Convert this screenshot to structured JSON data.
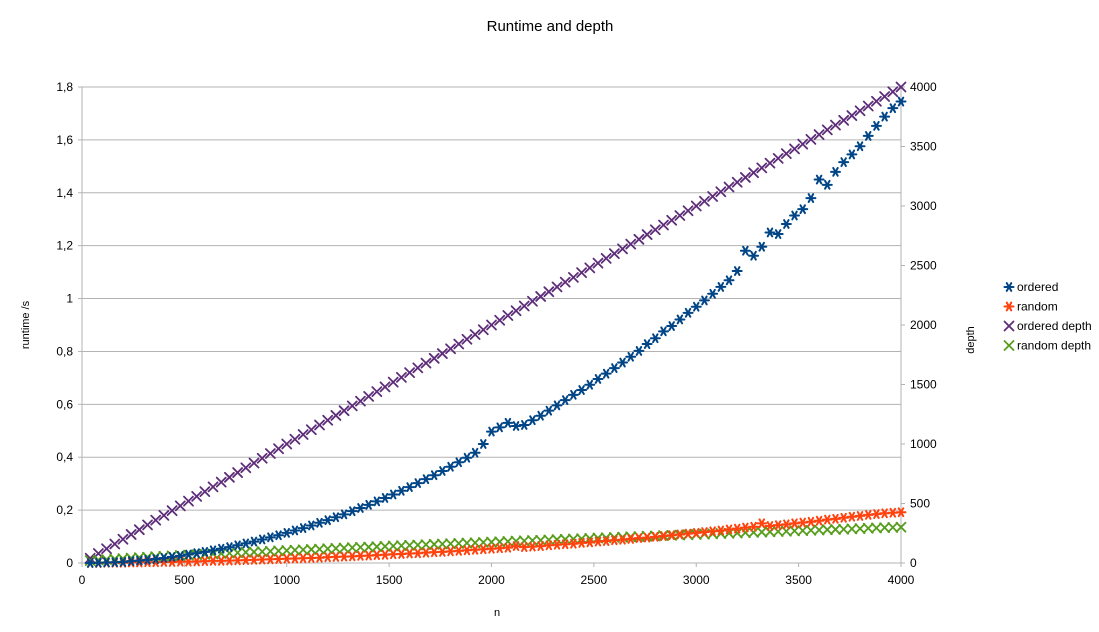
{
  "chart_data": {
    "type": "scatter",
    "title": "Runtime and depth",
    "xlabel": "n",
    "ylabel": "runtime /s",
    "y2label": "depth",
    "xlim": [
      0,
      4000
    ],
    "ylim": [
      0,
      1.8
    ],
    "y2lim": [
      0,
      4000
    ],
    "x_ticks": [
      "0",
      "500",
      "1000",
      "1500",
      "2000",
      "2500",
      "3000",
      "3500",
      "4000"
    ],
    "y_ticks": [
      "0",
      "0,2",
      "0,4",
      "0,6",
      "0,8",
      "1",
      "1,2",
      "1,4",
      "1,6",
      "1,8"
    ],
    "y2_ticks": [
      "0",
      "500",
      "1000",
      "1500",
      "2000",
      "2500",
      "3000",
      "3500",
      "4000"
    ],
    "grid": true,
    "legend_position": "right",
    "x": [
      40,
      80,
      120,
      160,
      200,
      240,
      280,
      320,
      360,
      400,
      440,
      480,
      520,
      560,
      600,
      640,
      680,
      720,
      760,
      800,
      840,
      880,
      920,
      960,
      1000,
      1040,
      1080,
      1120,
      1160,
      1200,
      1240,
      1280,
      1320,
      1360,
      1400,
      1440,
      1480,
      1520,
      1560,
      1600,
      1640,
      1680,
      1720,
      1760,
      1800,
      1840,
      1880,
      1920,
      1960,
      2000,
      2040,
      2080,
      2120,
      2160,
      2200,
      2240,
      2280,
      2320,
      2360,
      2400,
      2440,
      2480,
      2520,
      2560,
      2600,
      2640,
      2680,
      2720,
      2760,
      2800,
      2840,
      2880,
      2920,
      2960,
      3000,
      3040,
      3080,
      3120,
      3160,
      3200,
      3240,
      3280,
      3320,
      3360,
      3400,
      3440,
      3480,
      3520,
      3560,
      3600,
      3640,
      3680,
      3720,
      3760,
      3800,
      3840,
      3880,
      3920,
      3960,
      4000
    ],
    "series": [
      {
        "name": "ordered",
        "axis": "left",
        "marker": "asterisk",
        "color": "#004586",
        "values": [
          0.0,
          0.001,
          0.002,
          0.003,
          0.004,
          0.007,
          0.009,
          0.012,
          0.015,
          0.019,
          0.023,
          0.027,
          0.032,
          0.037,
          0.042,
          0.048,
          0.054,
          0.06,
          0.067,
          0.074,
          0.081,
          0.089,
          0.097,
          0.105,
          0.114,
          0.123,
          0.132,
          0.142,
          0.152,
          0.162,
          0.173,
          0.184,
          0.196,
          0.208,
          0.22,
          0.233,
          0.246,
          0.259,
          0.273,
          0.287,
          0.302,
          0.317,
          0.332,
          0.348,
          0.364,
          0.381,
          0.398,
          0.417,
          0.45,
          0.497,
          0.513,
          0.53,
          0.518,
          0.522,
          0.54,
          0.557,
          0.576,
          0.596,
          0.616,
          0.636,
          0.654,
          0.674,
          0.696,
          0.716,
          0.737,
          0.758,
          0.78,
          0.802,
          0.828,
          0.85,
          0.876,
          0.896,
          0.921,
          0.946,
          0.969,
          0.993,
          1.018,
          1.044,
          1.069,
          1.104,
          1.181,
          1.162,
          1.196,
          1.25,
          1.244,
          1.282,
          1.314,
          1.338,
          1.38,
          1.45,
          1.43,
          1.479,
          1.516,
          1.545,
          1.576,
          1.615,
          1.653,
          1.688,
          1.72,
          1.745
        ]
      },
      {
        "name": "random",
        "axis": "left",
        "marker": "asterisk",
        "color": "#ff420e",
        "values": [
          0.0,
          0.0,
          0.001,
          0.001,
          0.001,
          0.002,
          0.002,
          0.003,
          0.003,
          0.004,
          0.004,
          0.005,
          0.005,
          0.006,
          0.007,
          0.008,
          0.008,
          0.009,
          0.01,
          0.011,
          0.012,
          0.013,
          0.014,
          0.015,
          0.016,
          0.017,
          0.018,
          0.019,
          0.02,
          0.022,
          0.023,
          0.024,
          0.025,
          0.027,
          0.028,
          0.03,
          0.031,
          0.033,
          0.034,
          0.036,
          0.037,
          0.039,
          0.041,
          0.042,
          0.044,
          0.046,
          0.048,
          0.05,
          0.052,
          0.054,
          0.056,
          0.058,
          0.064,
          0.06,
          0.062,
          0.064,
          0.067,
          0.069,
          0.071,
          0.073,
          0.076,
          0.078,
          0.081,
          0.083,
          0.086,
          0.088,
          0.091,
          0.094,
          0.096,
          0.099,
          0.102,
          0.105,
          0.108,
          0.111,
          0.114,
          0.117,
          0.12,
          0.123,
          0.127,
          0.13,
          0.134,
          0.137,
          0.15,
          0.14,
          0.143,
          0.146,
          0.15,
          0.153,
          0.156,
          0.16,
          0.164,
          0.167,
          0.171,
          0.175,
          0.178,
          0.182,
          0.185,
          0.188,
          0.19,
          0.192
        ]
      },
      {
        "name": "ordered depth",
        "axis": "right",
        "marker": "cross",
        "color": "#5e2d79",
        "values": [
          40,
          80,
          120,
          160,
          200,
          240,
          280,
          320,
          360,
          400,
          440,
          480,
          520,
          560,
          600,
          640,
          680,
          720,
          760,
          800,
          840,
          880,
          920,
          960,
          1000,
          1040,
          1080,
          1120,
          1160,
          1200,
          1240,
          1280,
          1320,
          1360,
          1400,
          1440,
          1480,
          1520,
          1560,
          1600,
          1640,
          1680,
          1720,
          1760,
          1800,
          1840,
          1880,
          1920,
          1960,
          2000,
          2040,
          2080,
          2120,
          2160,
          2200,
          2240,
          2280,
          2320,
          2360,
          2400,
          2440,
          2480,
          2520,
          2560,
          2600,
          2640,
          2680,
          2720,
          2760,
          2800,
          2840,
          2880,
          2920,
          2960,
          3000,
          3040,
          3080,
          3120,
          3160,
          3200,
          3240,
          3280,
          3320,
          3360,
          3400,
          3440,
          3480,
          3520,
          3560,
          3600,
          3640,
          3680,
          3720,
          3760,
          3800,
          3840,
          3880,
          3920,
          3960,
          4000
        ]
      },
      {
        "name": "random depth",
        "axis": "right",
        "marker": "cross",
        "color": "#579d1c",
        "values": [
          20,
          25,
          29,
          33,
          37,
          41,
          45,
          49,
          53,
          56,
          60,
          63,
          67,
          70,
          73,
          77,
          80,
          83,
          86,
          90,
          93,
          96,
          99,
          102,
          105,
          108,
          111,
          114,
          117,
          120,
          123,
          126,
          129,
          132,
          134,
          137,
          140,
          143,
          146,
          149,
          151,
          154,
          157,
          160,
          162,
          165,
          168,
          170,
          173,
          176,
          178,
          181,
          184,
          186,
          189,
          191,
          194,
          197,
          199,
          202,
          204,
          207,
          210,
          212,
          215,
          217,
          220,
          222,
          225,
          227,
          230,
          233,
          235,
          238,
          240,
          243,
          245,
          248,
          250,
          252,
          255,
          257,
          260,
          262,
          265,
          267,
          270,
          272,
          275,
          277,
          280,
          282,
          284,
          287,
          289,
          292,
          294,
          297,
          299,
          301
        ]
      }
    ]
  }
}
